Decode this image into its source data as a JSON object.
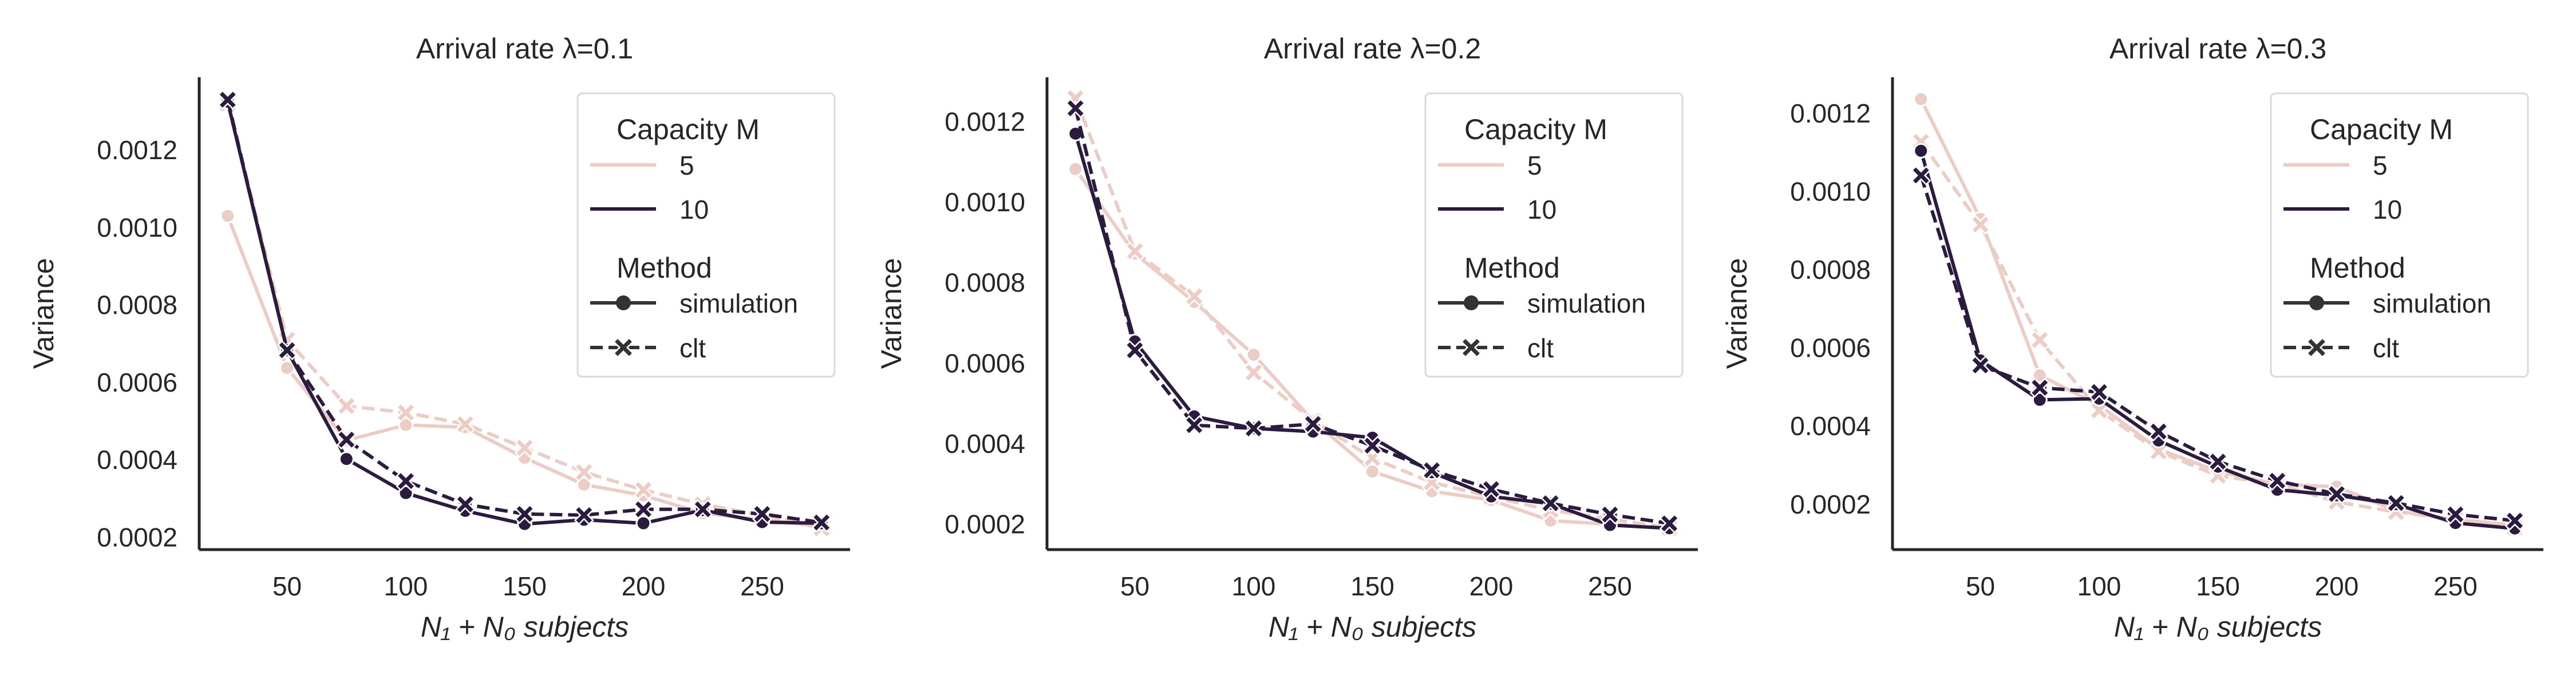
{
  "colors": {
    "m5": "#ebcdc6",
    "m10": "#2b1c3f",
    "legend_marker": "#333333",
    "axis": "#262626",
    "legend_border": "#d9d9d9"
  },
  "legend": {
    "title1": "Capacity M",
    "hue_labels": [
      "5",
      "10"
    ],
    "title2": "Method",
    "style_labels": [
      "simulation",
      "clt"
    ]
  },
  "chart_data": [
    {
      "type": "line",
      "title": "Arrival rate λ=0.1",
      "xlabel": "N₁ + N₀ subjects",
      "ylabel": "Variance",
      "xlim": [
        13,
        287
      ],
      "ylim": [
        0.000168,
        0.001388
      ],
      "xticks": [
        50,
        100,
        150,
        200,
        250
      ],
      "yticks": [
        0.0002,
        0.0004,
        0.0006,
        0.0008,
        0.001,
        0.0012
      ],
      "ytick_labels": [
        "0.0002",
        "0.0004",
        "0.0006",
        "0.0008",
        "0.0010",
        "0.0012"
      ],
      "grid": false,
      "legend_position": "top-right",
      "x": [
        25,
        50,
        75,
        100,
        125,
        150,
        175,
        200,
        225,
        250,
        275
      ],
      "series": [
        {
          "name": "M=5 simulation",
          "capacity": "5",
          "method": "simulation",
          "values": [
            0.00103,
            0.000637,
            0.00045,
            0.00049,
            0.000484,
            0.000405,
            0.000336,
            0.000308,
            0.000262,
            0.000245,
            0.000228
          ]
        },
        {
          "name": "M=5 clt",
          "capacity": "5",
          "method": "clt",
          "values": [
            0.00132,
            0.00071,
            0.000539,
            0.000522,
            0.000492,
            0.000431,
            0.000368,
            0.000322,
            0.000285,
            0.000257,
            0.000223
          ]
        },
        {
          "name": "M=10 simulation",
          "capacity": "10",
          "method": "simulation",
          "values": [
            0.001325,
            0.000683,
            0.000402,
            0.000314,
            0.000268,
            0.000234,
            0.000245,
            0.000236,
            0.00027,
            0.000239,
            0.000236
          ]
        },
        {
          "name": "M=10 clt",
          "capacity": "10",
          "method": "clt",
          "values": [
            0.00133,
            0.000683,
            0.000452,
            0.000345,
            0.000285,
            0.00026,
            0.000257,
            0.000272,
            0.000272,
            0.00026,
            0.000238
          ]
        }
      ]
    },
    {
      "type": "line",
      "title": "Arrival rate λ=0.2",
      "xlabel": "N₁ + N₀ subjects",
      "ylabel": "Variance",
      "xlim": [
        13,
        287
      ],
      "ylim": [
        0.000137,
        0.00131
      ],
      "xticks": [
        50,
        100,
        150,
        200,
        250
      ],
      "yticks": [
        0.0002,
        0.0004,
        0.0006,
        0.0008,
        0.001,
        0.0012
      ],
      "ytick_labels": [
        "0.0002",
        "0.0004",
        "0.0006",
        "0.0008",
        "0.0010",
        "0.0012"
      ],
      "grid": false,
      "legend_position": "top-right",
      "x": [
        25,
        50,
        75,
        100,
        125,
        150,
        175,
        200,
        225,
        250,
        275
      ],
      "series": [
        {
          "name": "M=5 simulation",
          "capacity": "5",
          "method": "simulation",
          "values": [
            0.001082,
            0.000872,
            0.000752,
            0.000621,
            0.000457,
            0.000331,
            0.000282,
            0.00026,
            0.000209,
            0.0002,
            0.00019
          ]
        },
        {
          "name": "M=5 clt",
          "capacity": "5",
          "method": "clt",
          "values": [
            0.001258,
            0.000878,
            0.000766,
            0.000577,
            0.000457,
            0.000364,
            0.000304,
            0.000268,
            0.000235,
            0.000213,
            0.000191
          ]
        },
        {
          "name": "M=10 simulation",
          "capacity": "10",
          "method": "simulation",
          "values": [
            0.00117,
            0.000654,
            0.000468,
            0.000438,
            0.00043,
            0.000415,
            0.000329,
            0.000269,
            0.000251,
            0.000198,
            0.00019
          ]
        },
        {
          "name": "M=10 clt",
          "capacity": "10",
          "method": "clt",
          "values": [
            0.001233,
            0.000632,
            0.000446,
            0.000438,
            0.000449,
            0.000395,
            0.000334,
            0.000287,
            0.000252,
            0.000224,
            0.000202
          ]
        }
      ]
    },
    {
      "type": "line",
      "title": "Arrival rate λ=0.3",
      "xlabel": "N₁ + N₀ subjects",
      "ylabel": "Variance",
      "xlim": [
        13,
        287
      ],
      "ylim": [
        8.4e-05,
        0.001292
      ],
      "xticks": [
        50,
        100,
        150,
        200,
        250
      ],
      "yticks": [
        0.0002,
        0.0004,
        0.0006,
        0.0008,
        0.001,
        0.0012
      ],
      "ytick_labels": [
        "0.0002",
        "0.0004",
        "0.0006",
        "0.0008",
        "0.0010",
        "0.0012"
      ],
      "grid": false,
      "legend_position": "top-right",
      "x": [
        25,
        50,
        75,
        100,
        125,
        150,
        175,
        200,
        225,
        250,
        275
      ],
      "series": [
        {
          "name": "M=5 simulation",
          "capacity": "5",
          "method": "simulation",
          "values": [
            0.001236,
            0.00093,
            0.00053,
            0.000453,
            0.000341,
            0.000284,
            0.000251,
            0.000245,
            0.000183,
            0.000161,
            0.000147
          ]
        },
        {
          "name": "M=5 clt",
          "capacity": "5",
          "method": "clt",
          "values": [
            0.001127,
            0.000915,
            0.00062,
            0.00044,
            0.000335,
            0.000273,
            0.000251,
            0.000206,
            0.00018,
            0.000161,
            0.00014
          ]
        },
        {
          "name": "M=10 simulation",
          "capacity": "10",
          "method": "simulation",
          "values": [
            0.001104,
            0.000568,
            0.000467,
            0.00047,
            0.000363,
            0.000296,
            0.000237,
            0.000223,
            0.0002,
            0.000152,
            0.000138
          ]
        },
        {
          "name": "M=10 clt",
          "capacity": "10",
          "method": "clt",
          "values": [
            0.001041,
            0.000555,
            0.000498,
            0.000487,
            0.000386,
            0.000309,
            0.00026,
            0.000226,
            0.000203,
            0.000174,
            0.000158
          ]
        }
      ]
    }
  ]
}
